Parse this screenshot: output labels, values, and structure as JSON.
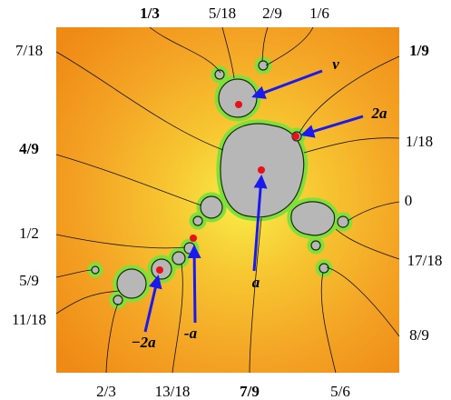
{
  "rays": [
    {
      "label": "1/3",
      "bold": true
    },
    {
      "label": "5/18",
      "bold": false
    },
    {
      "label": "2/9",
      "bold": false
    },
    {
      "label": "1/6",
      "bold": false
    },
    {
      "label": "1/9",
      "bold": true
    },
    {
      "label": "1/18",
      "bold": false
    },
    {
      "label": "0",
      "bold": false
    },
    {
      "label": "17/18",
      "bold": false
    },
    {
      "label": "8/9",
      "bold": false
    },
    {
      "label": "5/6",
      "bold": false
    },
    {
      "label": "7/9",
      "bold": true
    },
    {
      "label": "13/18",
      "bold": false
    },
    {
      "label": "2/3",
      "bold": false
    },
    {
      "label": "11/18",
      "bold": false
    },
    {
      "label": "5/9",
      "bold": false
    },
    {
      "label": "1/2",
      "bold": false
    },
    {
      "label": "4/9",
      "bold": true
    },
    {
      "label": "7/18",
      "bold": false
    }
  ],
  "points": [
    {
      "label": "v"
    },
    {
      "label": "2a"
    },
    {
      "label": "a"
    },
    {
      "label": "-a"
    },
    {
      "label": "−2a"
    }
  ]
}
